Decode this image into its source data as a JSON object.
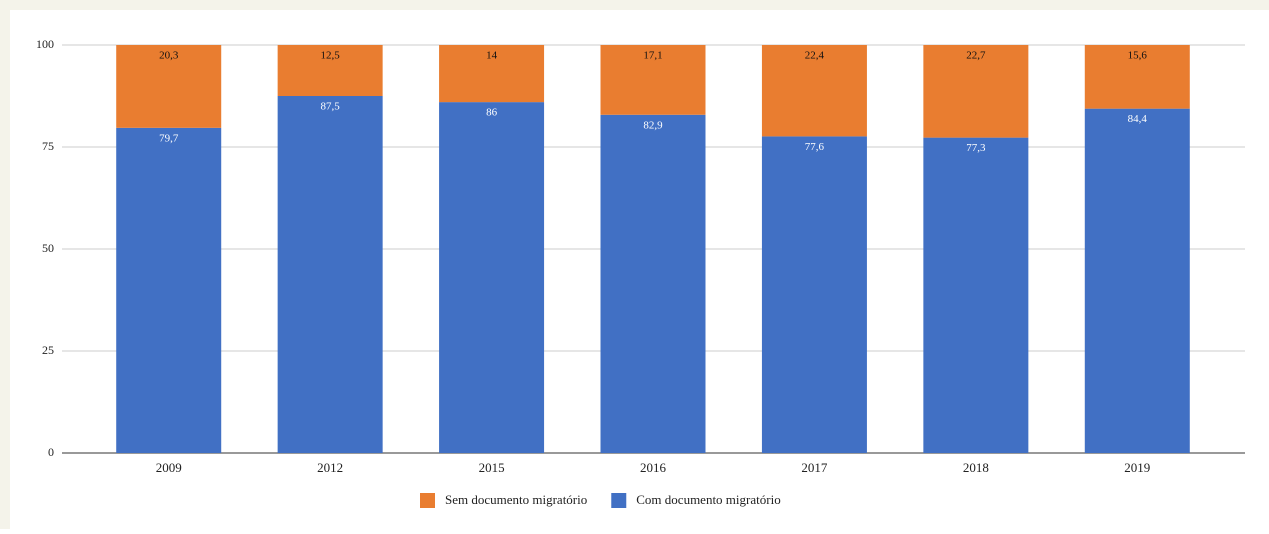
{
  "chart_data": {
    "type": "stacked-bar",
    "categories": [
      "2009",
      "2012",
      "2015",
      "2016",
      "2017",
      "2018",
      "2019"
    ],
    "series": [
      {
        "name": "Sem documento migratório",
        "color": "#e97d30",
        "values": [
          20.3,
          12.5,
          14,
          17.1,
          22.4,
          22.7,
          15.6
        ],
        "value_labels": [
          "20,3",
          "12,5",
          "14",
          "17,1",
          "22,4",
          "22,7",
          "15,6"
        ]
      },
      {
        "name": "Com documento migratório",
        "color": "#4170c4",
        "values": [
          79.7,
          87.5,
          86,
          82.9,
          77.6,
          77.3,
          84.4
        ],
        "value_labels": [
          "79,7",
          "87,5",
          "86",
          "82,9",
          "77,6",
          "77,3",
          "84,4"
        ]
      }
    ],
    "ylim": [
      0,
      100
    ],
    "yticks": [
      0,
      25,
      50,
      75,
      100
    ],
    "grid": true
  }
}
